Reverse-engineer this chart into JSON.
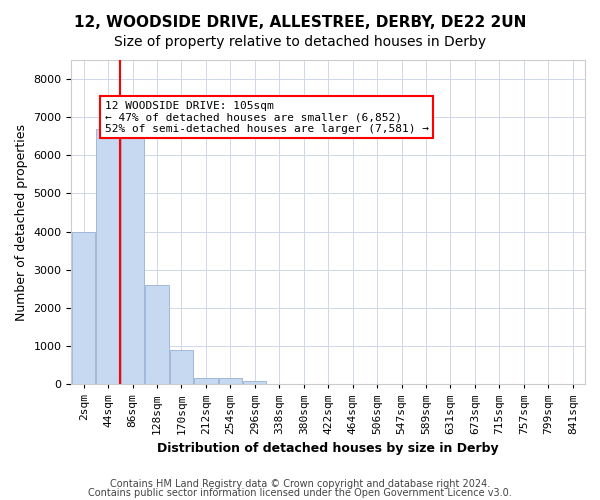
{
  "title1": "12, WOODSIDE DRIVE, ALLESTREE, DERBY, DE22 2UN",
  "title2": "Size of property relative to detached houses in Derby",
  "xlabel": "Distribution of detached houses by size in Derby",
  "ylabel": "Number of detached properties",
  "bin_labels": [
    "2sqm",
    "44sqm",
    "86sqm",
    "128sqm",
    "170sqm",
    "212sqm",
    "254sqm",
    "296sqm",
    "338sqm",
    "380sqm",
    "422sqm",
    "464sqm",
    "506sqm",
    "547sqm",
    "589sqm",
    "631sqm",
    "673sqm",
    "715sqm",
    "757sqm",
    "799sqm",
    "841sqm"
  ],
  "bar_values": [
    4000,
    6700,
    6700,
    2600,
    900,
    150,
    150,
    75,
    0,
    0,
    0,
    0,
    0,
    0,
    0,
    0,
    0,
    0,
    0,
    0,
    0
  ],
  "bar_color": "#c6d9f0",
  "bar_edge_color": "#a0b8d8",
  "red_line_x": 1.5,
  "red_line_label": "12 WOODSIDE DRIVE: 105sqm",
  "annotation_line1": "← 47% of detached houses are smaller (6,852)",
  "annotation_line2": "52% of semi-detached houses are larger (7,581) →",
  "ylim": [
    0,
    8500
  ],
  "yticks": [
    0,
    1000,
    2000,
    3000,
    4000,
    5000,
    6000,
    7000,
    8000
  ],
  "grid_color": "#d0d8e8",
  "footer1": "Contains HM Land Registry data © Crown copyright and database right 2024.",
  "footer2": "Contains public sector information licensed under the Open Government Licence v3.0.",
  "title1_fontsize": 11,
  "title2_fontsize": 10,
  "xlabel_fontsize": 9,
  "ylabel_fontsize": 9,
  "tick_fontsize": 8,
  "annotation_fontsize": 8,
  "footer_fontsize": 7
}
